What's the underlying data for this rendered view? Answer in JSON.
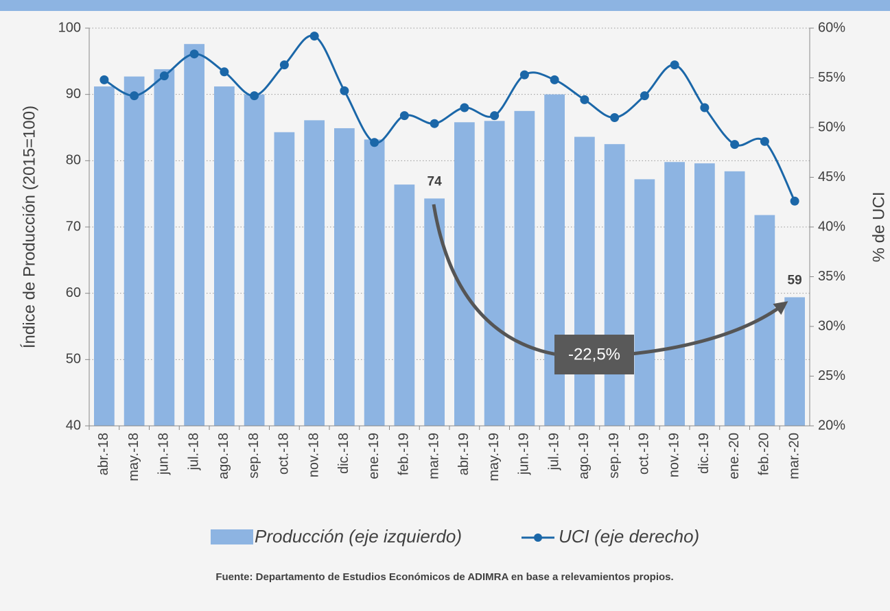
{
  "chart_data": {
    "type": "bar",
    "categories": [
      "abr.-18",
      "may.-18",
      "jun.-18",
      "jul.-18",
      "ago.-18",
      "sep.-18",
      "oct.-18",
      "nov.-18",
      "dic.-18",
      "ene.-19",
      "feb.-19",
      "mar.-19",
      "abr.-19",
      "may.-19",
      "jun.-19",
      "jul.-19",
      "ago.-19",
      "sep.-19",
      "oct.-19",
      "nov.-19",
      "dic.-19",
      "ene.-20",
      "feb.-20",
      "mar.-20"
    ],
    "series": [
      {
        "name": "Producción (eje izquierdo)",
        "type": "bar",
        "axis": "y",
        "color": "#8db4e2",
        "values": [
          91.2,
          92.7,
          93.8,
          97.6,
          91.2,
          90.0,
          84.3,
          86.1,
          84.9,
          83.2,
          76.4,
          74.3,
          85.8,
          86.0,
          87.5,
          90.0,
          83.6,
          82.5,
          77.2,
          79.8,
          79.6,
          78.4,
          71.8,
          59.4
        ],
        "value_labels": [
          null,
          null,
          null,
          null,
          null,
          null,
          null,
          null,
          null,
          null,
          null,
          "74",
          null,
          null,
          null,
          null,
          null,
          null,
          null,
          null,
          null,
          null,
          null,
          "59"
        ]
      },
      {
        "name": "UCI (eje derecho)",
        "type": "line",
        "axis": "y2",
        "color": "#1b67a8",
        "values": [
          54.8,
          53.2,
          55.2,
          57.4,
          55.6,
          53.2,
          56.3,
          59.2,
          53.7,
          48.5,
          51.2,
          50.4,
          52.0,
          51.2,
          55.3,
          54.8,
          52.8,
          51.0,
          53.2,
          56.3,
          52.0,
          48.3,
          48.6,
          42.6
        ]
      }
    ],
    "ylabel": "Índice de Producción  (2015=100)",
    "y2label": "% de UCI",
    "ylim": [
      40,
      100
    ],
    "yticks": [
      40,
      50,
      60,
      70,
      80,
      90,
      100
    ],
    "y2lim": [
      20,
      60
    ],
    "y2ticks": [
      {
        "value": 20,
        "label": "20%"
      },
      {
        "value": 25,
        "label": "25%"
      },
      {
        "value": 30,
        "label": "30%"
      },
      {
        "value": 35,
        "label": "35%"
      },
      {
        "value": 40,
        "label": "40%"
      },
      {
        "value": 45,
        "label": "45%"
      },
      {
        "value": 50,
        "label": "50%"
      },
      {
        "value": 55,
        "label": "55%"
      },
      {
        "value": 60,
        "label": "60%"
      }
    ],
    "grid": true,
    "annotation": "-22,5%",
    "source": "Fuente: Departamento de Estudios Económicos de ADIMRA en base a relevamientos propios."
  }
}
